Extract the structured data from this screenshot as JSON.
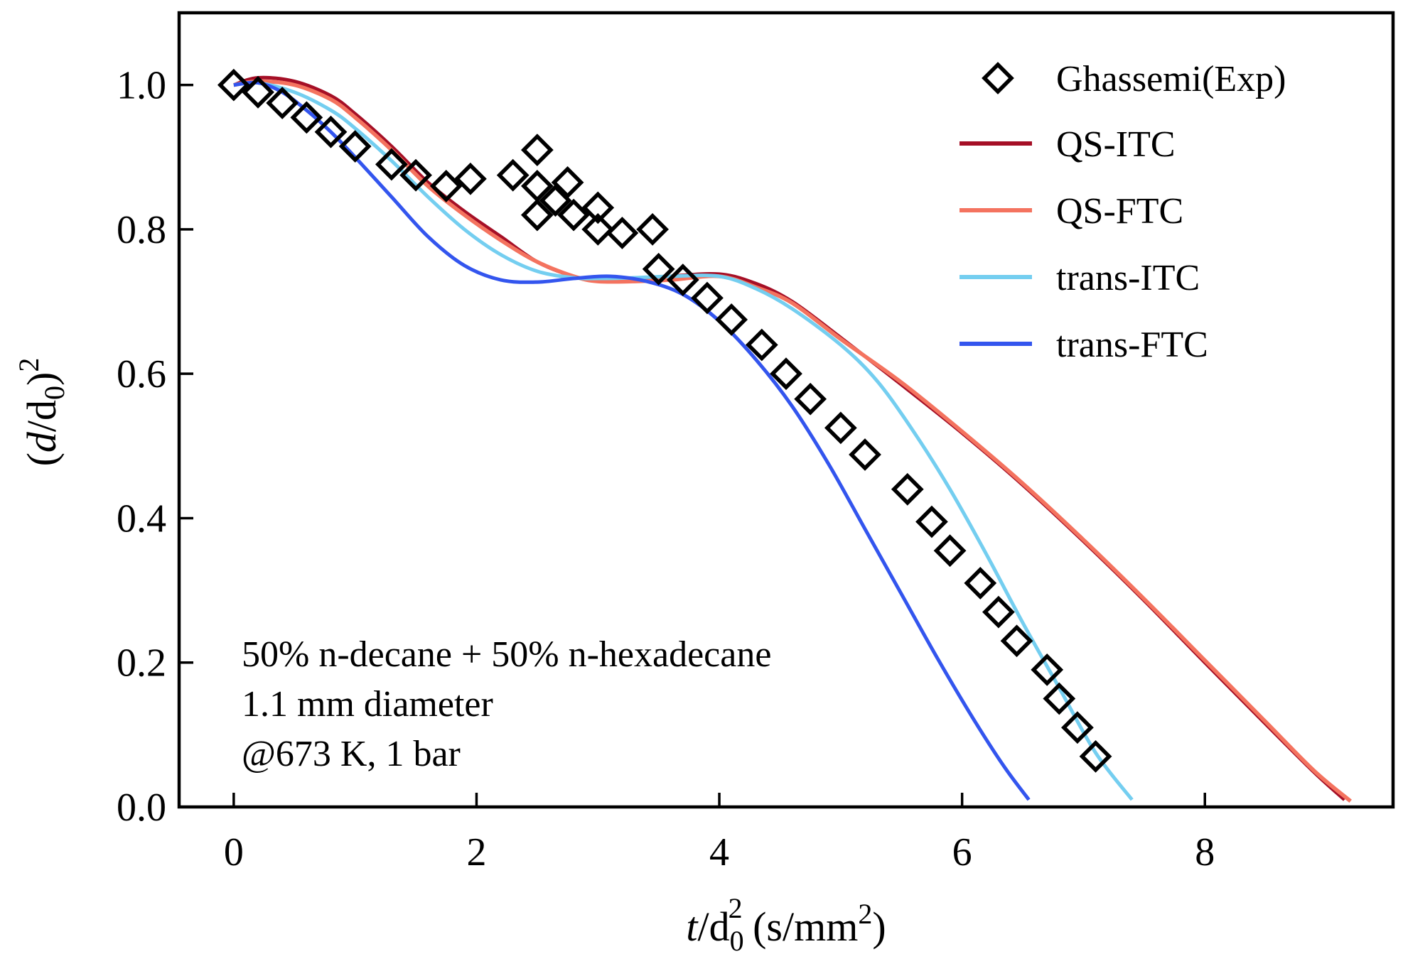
{
  "chart_data": {
    "type": "line",
    "xlabel": {
      "main": "t",
      "sep": "/d",
      "sub": "0",
      "sup": "2",
      "tail": " (s/mm",
      "tail_sup": "2",
      "close": ")"
    },
    "ylabel": {
      "open": "(",
      "main": "d",
      "sep": "/d",
      "sub": "0",
      "close": ")",
      "sup": "2"
    },
    "xlim": [
      -0.45,
      9.55
    ],
    "ylim": [
      0.0,
      1.1
    ],
    "xticks": [
      0,
      2,
      4,
      6,
      8
    ],
    "yticks": [
      0.0,
      0.2,
      0.4,
      0.6,
      0.8,
      1.0
    ],
    "xtick_labels": [
      "0",
      "2",
      "4",
      "6",
      "8"
    ],
    "ytick_labels": [
      "0.0",
      "0.2",
      "0.4",
      "0.6",
      "0.8",
      "1.0"
    ],
    "grid": false,
    "legend_position": "top-right",
    "annotations": [
      "50% n-decane + 50% n-hexadecane",
      "1.1 mm diameter",
      "@673 K, 1 bar"
    ],
    "series": [
      {
        "name": "Ghassemi(Exp)",
        "kind": "scatter",
        "marker": "diamond",
        "color": "#000000",
        "points": [
          [
            0.0,
            1.0
          ],
          [
            0.2,
            0.99
          ],
          [
            0.4,
            0.975
          ],
          [
            0.6,
            0.955
          ],
          [
            0.8,
            0.935
          ],
          [
            1.0,
            0.915
          ],
          [
            1.3,
            0.89
          ],
          [
            1.5,
            0.875
          ],
          [
            1.75,
            0.86
          ],
          [
            1.95,
            0.87
          ],
          [
            2.3,
            0.875
          ],
          [
            2.5,
            0.91
          ],
          [
            2.5,
            0.86
          ],
          [
            2.5,
            0.82
          ],
          [
            2.65,
            0.84
          ],
          [
            2.75,
            0.865
          ],
          [
            2.8,
            0.82
          ],
          [
            3.0,
            0.83
          ],
          [
            3.0,
            0.8
          ],
          [
            3.2,
            0.795
          ],
          [
            3.45,
            0.8
          ],
          [
            3.5,
            0.745
          ],
          [
            3.7,
            0.73
          ],
          [
            3.9,
            0.705
          ],
          [
            4.1,
            0.675
          ],
          [
            4.35,
            0.64
          ],
          [
            4.55,
            0.6
          ],
          [
            4.75,
            0.565
          ],
          [
            5.0,
            0.525
          ],
          [
            5.2,
            0.488
          ],
          [
            5.55,
            0.44
          ],
          [
            5.75,
            0.395
          ],
          [
            5.9,
            0.355
          ],
          [
            6.15,
            0.31
          ],
          [
            6.3,
            0.27
          ],
          [
            6.45,
            0.23
          ],
          [
            6.7,
            0.19
          ],
          [
            6.8,
            0.15
          ],
          [
            6.95,
            0.11
          ],
          [
            7.1,
            0.07
          ]
        ]
      },
      {
        "name": "QS-ITC",
        "kind": "line",
        "color": "#a50f26",
        "points": [
          [
            0.0,
            1.0
          ],
          [
            0.2,
            1.01
          ],
          [
            0.5,
            1.005
          ],
          [
            0.8,
            0.985
          ],
          [
            1.0,
            0.96
          ],
          [
            1.3,
            0.915
          ],
          [
            1.6,
            0.865
          ],
          [
            1.9,
            0.825
          ],
          [
            2.2,
            0.79
          ],
          [
            2.5,
            0.755
          ],
          [
            2.8,
            0.735
          ],
          [
            3.0,
            0.73
          ],
          [
            3.3,
            0.73
          ],
          [
            3.6,
            0.735
          ],
          [
            4.0,
            0.738
          ],
          [
            4.3,
            0.725
          ],
          [
            4.6,
            0.7
          ],
          [
            5.0,
            0.65
          ],
          [
            5.5,
            0.585
          ],
          [
            6.0,
            0.518
          ],
          [
            6.5,
            0.446
          ],
          [
            7.0,
            0.368
          ],
          [
            7.5,
            0.286
          ],
          [
            8.0,
            0.2
          ],
          [
            8.5,
            0.115
          ],
          [
            8.9,
            0.048
          ],
          [
            9.15,
            0.01
          ]
        ]
      },
      {
        "name": "QS-FTC",
        "kind": "line",
        "color": "#f4735f",
        "points": [
          [
            0.0,
            1.0
          ],
          [
            0.2,
            1.005
          ],
          [
            0.5,
            1.0
          ],
          [
            0.8,
            0.98
          ],
          [
            1.0,
            0.955
          ],
          [
            1.3,
            0.91
          ],
          [
            1.6,
            0.86
          ],
          [
            1.9,
            0.82
          ],
          [
            2.2,
            0.785
          ],
          [
            2.5,
            0.755
          ],
          [
            2.8,
            0.735
          ],
          [
            3.0,
            0.728
          ],
          [
            3.3,
            0.728
          ],
          [
            3.6,
            0.73
          ],
          [
            4.0,
            0.735
          ],
          [
            4.3,
            0.72
          ],
          [
            4.6,
            0.698
          ],
          [
            5.0,
            0.648
          ],
          [
            5.5,
            0.588
          ],
          [
            6.0,
            0.52
          ],
          [
            6.5,
            0.448
          ],
          [
            7.0,
            0.37
          ],
          [
            7.5,
            0.288
          ],
          [
            8.0,
            0.203
          ],
          [
            8.5,
            0.118
          ],
          [
            8.9,
            0.05
          ],
          [
            9.2,
            0.008
          ]
        ]
      },
      {
        "name": "trans-ITC",
        "kind": "line",
        "color": "#74cef0",
        "points": [
          [
            0.0,
            1.0
          ],
          [
            0.2,
            1.003
          ],
          [
            0.5,
            0.99
          ],
          [
            0.8,
            0.965
          ],
          [
            1.0,
            0.94
          ],
          [
            1.3,
            0.895
          ],
          [
            1.6,
            0.845
          ],
          [
            1.9,
            0.8
          ],
          [
            2.2,
            0.765
          ],
          [
            2.5,
            0.742
          ],
          [
            2.8,
            0.733
          ],
          [
            3.0,
            0.732
          ],
          [
            3.3,
            0.733
          ],
          [
            3.6,
            0.735
          ],
          [
            4.0,
            0.735
          ],
          [
            4.3,
            0.718
          ],
          [
            4.6,
            0.69
          ],
          [
            5.0,
            0.64
          ],
          [
            5.3,
            0.59
          ],
          [
            5.6,
            0.52
          ],
          [
            5.9,
            0.44
          ],
          [
            6.2,
            0.35
          ],
          [
            6.5,
            0.255
          ],
          [
            6.8,
            0.165
          ],
          [
            7.1,
            0.075
          ],
          [
            7.4,
            0.01
          ]
        ]
      },
      {
        "name": "trans-FTC",
        "kind": "line",
        "color": "#3355ee",
        "points": [
          [
            0.0,
            1.0
          ],
          [
            0.2,
            1.003
          ],
          [
            0.4,
            0.99
          ],
          [
            0.6,
            0.965
          ],
          [
            0.8,
            0.935
          ],
          [
            1.0,
            0.9
          ],
          [
            1.3,
            0.845
          ],
          [
            1.6,
            0.79
          ],
          [
            1.9,
            0.75
          ],
          [
            2.2,
            0.73
          ],
          [
            2.5,
            0.727
          ],
          [
            2.8,
            0.732
          ],
          [
            3.1,
            0.735
          ],
          [
            3.4,
            0.728
          ],
          [
            3.7,
            0.71
          ],
          [
            4.0,
            0.673
          ],
          [
            4.3,
            0.62
          ],
          [
            4.6,
            0.555
          ],
          [
            4.9,
            0.475
          ],
          [
            5.2,
            0.385
          ],
          [
            5.5,
            0.295
          ],
          [
            5.8,
            0.205
          ],
          [
            6.1,
            0.12
          ],
          [
            6.35,
            0.055
          ],
          [
            6.55,
            0.01
          ]
        ]
      }
    ]
  }
}
